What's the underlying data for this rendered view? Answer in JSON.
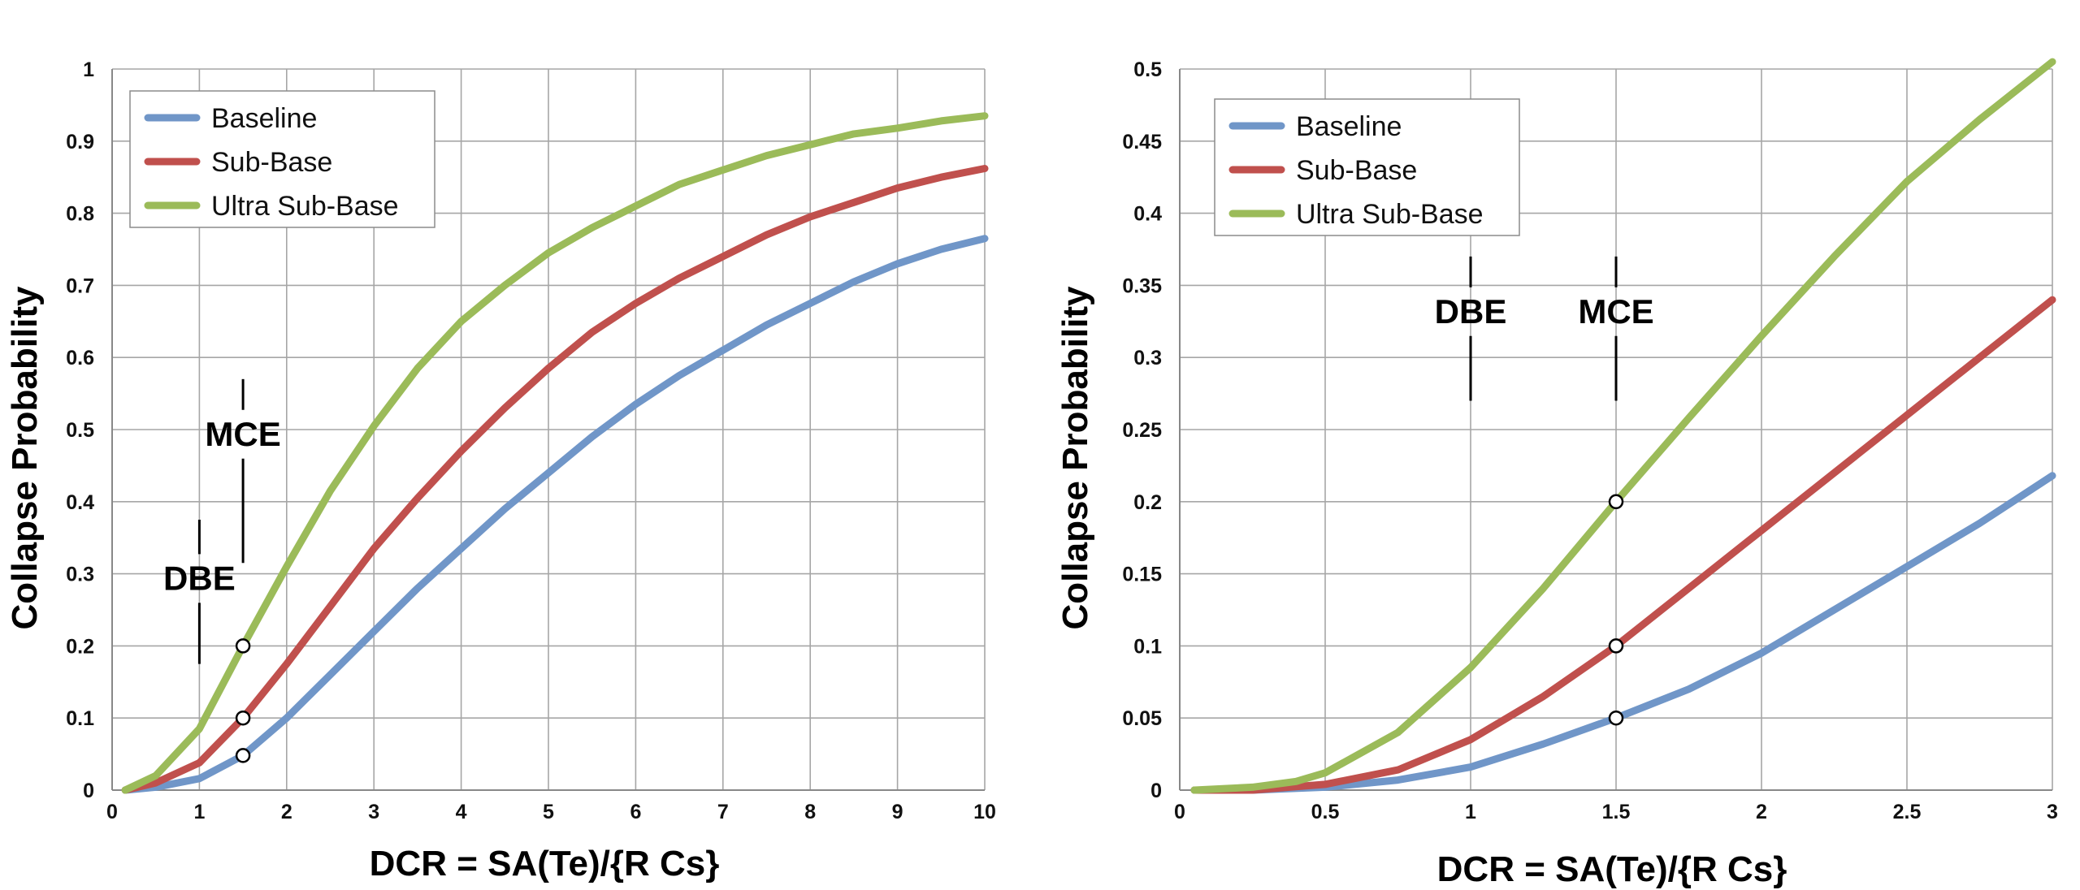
{
  "chart_data": [
    {
      "type": "line",
      "title": "",
      "xlabel": "DCR = SA(Te)/{R Cs}",
      "ylabel": "Collapse Probability",
      "xlim": [
        0,
        10
      ],
      "ylim": [
        0,
        1
      ],
      "xticks": [
        0,
        1,
        2,
        3,
        4,
        5,
        6,
        7,
        8,
        9,
        10
      ],
      "xtick_labels": [
        "0",
        "1",
        "2",
        "3",
        "4",
        "5",
        "6",
        "7",
        "8",
        "9",
        "10"
      ],
      "yticks": [
        0,
        0.1,
        0.2,
        0.3,
        0.4,
        0.5,
        0.6,
        0.7,
        0.8,
        0.9,
        1
      ],
      "ytick_labels": [
        "0",
        "0.1",
        "0.2",
        "0.3",
        "0.4",
        "0.5",
        "0.6",
        "0.7",
        "0.8",
        "0.9",
        "1"
      ],
      "grid": true,
      "legend_position": "top-left",
      "series": [
        {
          "name": "Baseline",
          "color": "#7096c8",
          "x": [
            0.15,
            0.5,
            1,
            1.5,
            2,
            2.5,
            3,
            3.5,
            4,
            4.5,
            5,
            5.5,
            6,
            6.5,
            7,
            7.5,
            8,
            8.5,
            9,
            9.5,
            10
          ],
          "y": [
            0,
            0.004,
            0.016,
            0.048,
            0.1,
            0.16,
            0.22,
            0.28,
            0.335,
            0.39,
            0.44,
            0.49,
            0.535,
            0.575,
            0.61,
            0.645,
            0.675,
            0.705,
            0.73,
            0.75,
            0.765
          ]
        },
        {
          "name": "Sub-Base",
          "color": "#c0504d",
          "x": [
            0.15,
            0.5,
            1,
            1.5,
            2,
            2.5,
            3,
            3.5,
            4,
            4.5,
            5,
            5.5,
            6,
            6.5,
            7,
            7.5,
            8,
            8.5,
            9,
            9.5,
            10
          ],
          "y": [
            0,
            0.01,
            0.038,
            0.1,
            0.175,
            0.255,
            0.335,
            0.405,
            0.47,
            0.53,
            0.585,
            0.635,
            0.675,
            0.71,
            0.74,
            0.77,
            0.795,
            0.815,
            0.835,
            0.85,
            0.862
          ]
        },
        {
          "name": "Ultra Sub-Base",
          "color": "#9bbb59",
          "x": [
            0.15,
            0.5,
            1,
            1.5,
            2,
            2.5,
            3,
            3.5,
            4,
            4.5,
            5,
            5.5,
            6,
            6.5,
            7,
            7.5,
            8,
            8.5,
            9,
            9.5,
            10
          ],
          "y": [
            0,
            0.02,
            0.085,
            0.2,
            0.31,
            0.415,
            0.505,
            0.585,
            0.65,
            0.7,
            0.745,
            0.78,
            0.81,
            0.84,
            0.86,
            0.88,
            0.895,
            0.91,
            0.918,
            0.928,
            0.935
          ]
        }
      ],
      "markers": [
        {
          "x": 1.5,
          "y": 0.048
        },
        {
          "x": 1.5,
          "y": 0.1
        },
        {
          "x": 1.5,
          "y": 0.2
        }
      ],
      "annotations": [
        {
          "text": "DBE",
          "x": 1.0,
          "y": 0.28,
          "line_top": 0.375,
          "line_bottom": 0.175
        },
        {
          "text": "MCE",
          "x": 1.5,
          "y": 0.48,
          "line_top": 0.57,
          "line_bottom": 0.315
        }
      ]
    },
    {
      "type": "line",
      "title": "",
      "xlabel": "DCR = SA(Te)/{R Cs}",
      "ylabel": "Collapse Probability",
      "xlim": [
        0,
        3
      ],
      "ylim": [
        0,
        0.5
      ],
      "xticks": [
        0,
        0.5,
        1,
        1.5,
        2,
        2.5,
        3
      ],
      "xtick_labels": [
        "0",
        "0.5",
        "1",
        "1.5",
        "2",
        "2.5",
        "3"
      ],
      "yticks": [
        0,
        0.05,
        0.1,
        0.15,
        0.2,
        0.25,
        0.3,
        0.35,
        0.4,
        0.45,
        0.5
      ],
      "ytick_labels": [
        "0",
        "0.05",
        "0.1",
        "0.15",
        "0.2",
        "0.25",
        "0.3",
        "0.35",
        "0.4",
        "0.45",
        "0.5"
      ],
      "grid": true,
      "legend_position": "top-left",
      "series": [
        {
          "name": "Baseline",
          "color": "#7096c8",
          "x": [
            0.05,
            0.25,
            0.5,
            0.75,
            1.0,
            1.25,
            1.5,
            1.75,
            2.0,
            2.25,
            2.5,
            2.75,
            3.0
          ],
          "y": [
            0,
            0,
            0.002,
            0.007,
            0.016,
            0.032,
            0.05,
            0.07,
            0.095,
            0.125,
            0.155,
            0.185,
            0.218
          ]
        },
        {
          "name": "Sub-Base",
          "color": "#c0504d",
          "x": [
            0.05,
            0.25,
            0.5,
            0.75,
            1.0,
            1.25,
            1.5,
            1.75,
            2.0,
            2.25,
            2.5,
            2.75,
            3.0
          ],
          "y": [
            0,
            0,
            0.004,
            0.014,
            0.035,
            0.065,
            0.1,
            0.14,
            0.18,
            0.22,
            0.26,
            0.3,
            0.34
          ]
        },
        {
          "name": "Ultra Sub-Base",
          "color": "#9bbb59",
          "x": [
            0.05,
            0.25,
            0.4,
            0.5,
            0.75,
            1.0,
            1.25,
            1.5,
            1.75,
            2.0,
            2.25,
            2.5,
            2.75,
            3.0
          ],
          "y": [
            0,
            0.002,
            0.006,
            0.012,
            0.04,
            0.085,
            0.14,
            0.2,
            0.258,
            0.315,
            0.37,
            0.422,
            0.465,
            0.505
          ]
        }
      ],
      "markers": [
        {
          "x": 1.5,
          "y": 0.05
        },
        {
          "x": 1.5,
          "y": 0.1
        },
        {
          "x": 1.5,
          "y": 0.2
        }
      ],
      "annotations": [
        {
          "text": "DBE",
          "x": 1.0,
          "y": 0.325,
          "line_top": 0.37,
          "line_bottom": 0.27
        },
        {
          "text": "MCE",
          "x": 1.5,
          "y": 0.325,
          "line_top": 0.37,
          "line_bottom": 0.27
        }
      ]
    }
  ]
}
